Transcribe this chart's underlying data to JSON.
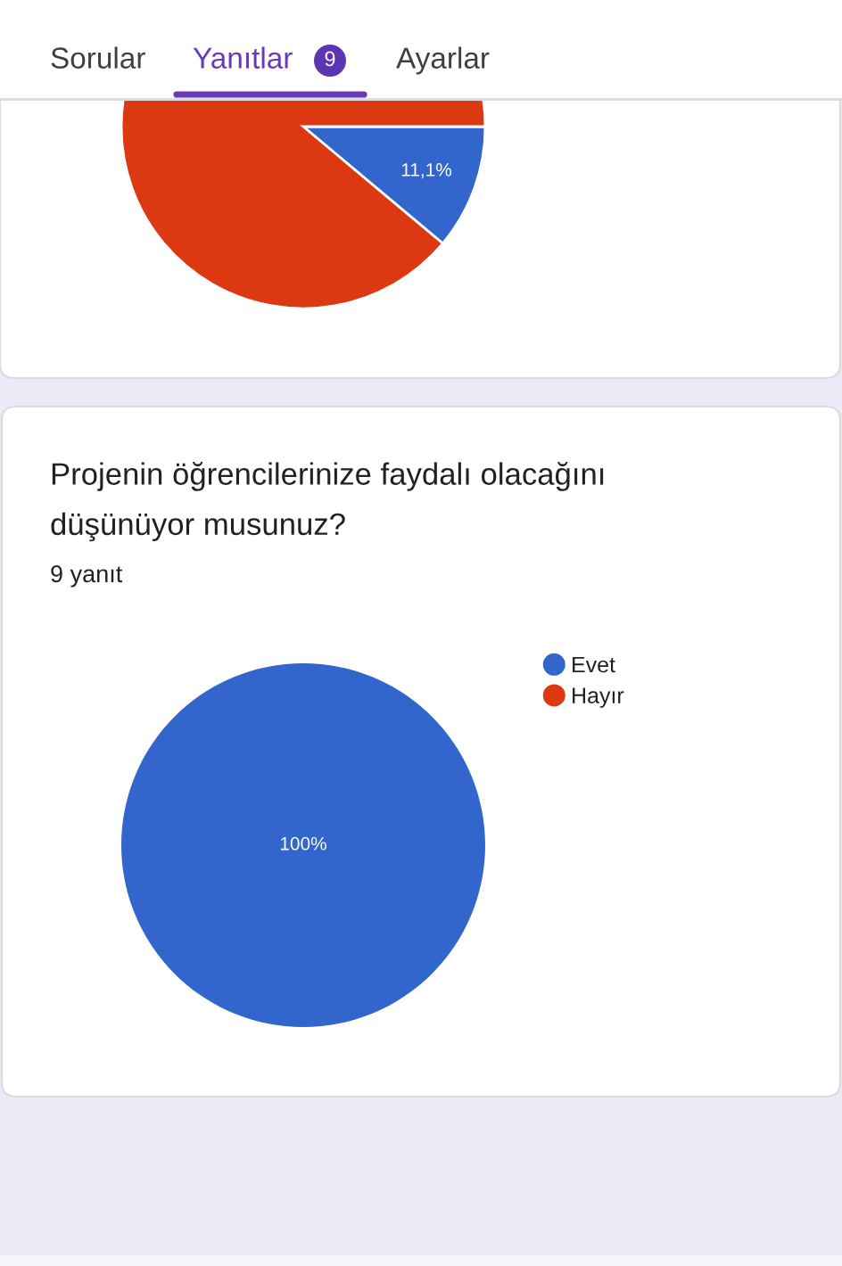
{
  "chart_data": [
    {
      "type": "pie",
      "categories": [
        null,
        null
      ],
      "values": [
        11.1,
        88.9
      ],
      "colors": [
        "#3366cc",
        "#dc3912"
      ],
      "value_labels": [
        "11,1%",
        null
      ],
      "annotations": [
        "Sorular",
        "Yanıtlar",
        "9",
        "Ayarlar"
      ]
    },
    {
      "type": "pie",
      "title": "Projenin öğrencilerinize faydalı olacağını düşünüyor musunuz?",
      "subtitle": "9 yanıt",
      "categories": [
        "Evet",
        "Hayır"
      ],
      "values": [
        100,
        0
      ],
      "colors": [
        "#3366cc",
        "#dc3912"
      ],
      "value_labels": [
        "100%",
        null
      ],
      "legend": "top right"
    }
  ]
}
